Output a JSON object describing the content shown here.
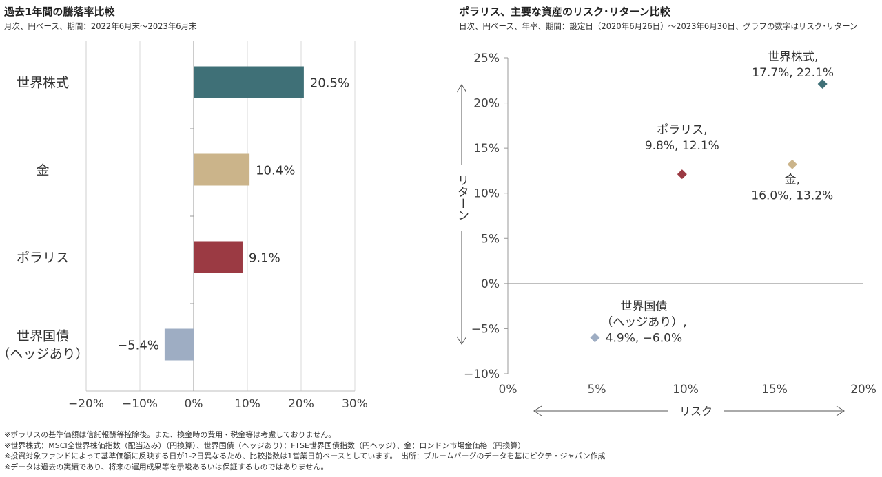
{
  "left_panel": {
    "title": "過去1年間の騰落率比較",
    "subtitle": "月次、円ベース、期間：2022年6月末～2023年6月末"
  },
  "right_panel": {
    "title": "ポラリス、主要な資産のリスク･リターン比較",
    "subtitle": "日次、円ベース、年率、期間：設定日（2020年6月26日）～2023年6月30日、グラフの数字はリスク･リターン"
  },
  "chart_data": [
    {
      "type": "bar",
      "orientation": "horizontal",
      "categories": [
        "世界株式",
        "金",
        "ポラリス",
        "世界国債\n（ヘッジあり）"
      ],
      "values": [
        20.5,
        10.4,
        9.1,
        -5.4
      ],
      "data_labels": [
        "20.5%",
        "10.4%",
        "9.1%",
        "−5.4%"
      ],
      "colors": [
        "#3f7077",
        "#cbb48a",
        "#9b3a43",
        "#9eadc3"
      ],
      "xlim": [
        -20,
        30
      ],
      "x_ticks": [
        "−20%",
        "−10%",
        "0%",
        "10%",
        "20%",
        "30%"
      ],
      "grid": true
    },
    {
      "type": "scatter",
      "xlabel": "リスク",
      "ylabel": "リターン",
      "xlim": [
        0,
        20
      ],
      "ylim": [
        -10,
        25
      ],
      "x_ticks": [
        "0%",
        "5%",
        "10%",
        "15%",
        "20%"
      ],
      "y_ticks": [
        "25%",
        "20%",
        "15%",
        "10%",
        "5%",
        "0%",
        "−5%",
        "−10%"
      ],
      "points": [
        {
          "name": "世界株式",
          "label_lines": [
            "世界株式,",
            "17.7%, 22.1%"
          ],
          "x": 17.7,
          "y": 22.1,
          "color": "#3f7077"
        },
        {
          "name": "ポラリス",
          "label_lines": [
            "ポラリス,",
            "9.8%, 12.1%"
          ],
          "x": 9.8,
          "y": 12.1,
          "color": "#9b3a43"
        },
        {
          "name": "金",
          "label_lines": [
            "金,",
            "16.0%, 13.2%"
          ],
          "x": 16.0,
          "y": 13.2,
          "color": "#cbb48a"
        },
        {
          "name": "世界国債（ヘッジあり）",
          "label_lines": [
            "世界国債",
            "（ヘッジあり）,",
            "4.9%, −6.0%"
          ],
          "x": 4.9,
          "y": -6.0,
          "color": "#9eadc3"
        }
      ]
    }
  ],
  "notes": [
    "※ポラリスの基準価額は信託報酬等控除後。また、換金時の費用・税金等は考慮しておりません。",
    "※世界株式：MSCI全世界株価指数（配当込み）（円換算）、世界国債（ヘッジあり）：FTSE世界国債指数（円ヘッジ）、金：ロンドン市場金価格（円換算）",
    "※投資対象ファンドによって基準価額に反映する日が1-2日異なるため、比較指数は1営業日前ベースとしています。　出所：ブルームバーグのデータを基にピクテ・ジャパン作成",
    "※データは過去の実績であり、将来の運用成果等を示唆あるいは保証するものではありません。"
  ]
}
